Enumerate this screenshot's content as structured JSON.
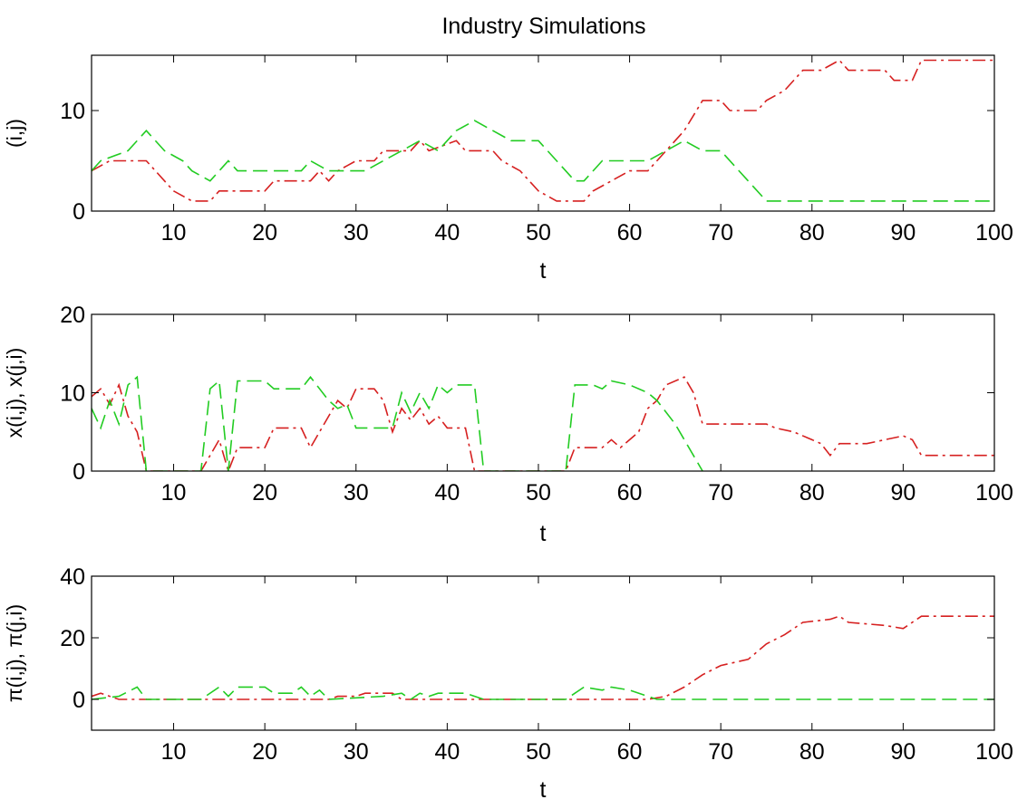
{
  "figure": {
    "title": "Industry Simulations"
  },
  "colors": {
    "red_series": "#d62020",
    "green_series": "#22cc22",
    "axes": "#000000"
  },
  "chart_data": [
    {
      "type": "line",
      "xlabel": "t",
      "ylabel": "(i,j)",
      "xlim": [
        1,
        100
      ],
      "ylim": [
        0,
        15.5
      ],
      "xticks": [
        10,
        20,
        30,
        40,
        50,
        60,
        70,
        80,
        90,
        100
      ],
      "yticks": [
        0,
        10
      ],
      "grid": false,
      "series": [
        {
          "color": "red",
          "style": "dash-dot",
          "points": [
            [
              1,
              4
            ],
            [
              3,
              5
            ],
            [
              7,
              5
            ],
            [
              9,
              3
            ],
            [
              10,
              2
            ],
            [
              12,
              1
            ],
            [
              14,
              1
            ],
            [
              15,
              2
            ],
            [
              20,
              2
            ],
            [
              21,
              3
            ],
            [
              25,
              3
            ],
            [
              26,
              4
            ],
            [
              27,
              3
            ],
            [
              28,
              4
            ],
            [
              30,
              5
            ],
            [
              32,
              5
            ],
            [
              33,
              6
            ],
            [
              36,
              6
            ],
            [
              37,
              7
            ],
            [
              38,
              6
            ],
            [
              41,
              7
            ],
            [
              42,
              6
            ],
            [
              45,
              6
            ],
            [
              46,
              5
            ],
            [
              48,
              4
            ],
            [
              50,
              2
            ],
            [
              52,
              1
            ],
            [
              55,
              1
            ],
            [
              56,
              2
            ],
            [
              58,
              3
            ],
            [
              60,
              4
            ],
            [
              62,
              4
            ],
            [
              64,
              6
            ],
            [
              66,
              8
            ],
            [
              68,
              11
            ],
            [
              70,
              11
            ],
            [
              71,
              10
            ],
            [
              74,
              10
            ],
            [
              75,
              11
            ],
            [
              77,
              12
            ],
            [
              79,
              14
            ],
            [
              81,
              14
            ],
            [
              83,
              15
            ],
            [
              84,
              14
            ],
            [
              88,
              14
            ],
            [
              89,
              13
            ],
            [
              91,
              13
            ],
            [
              92,
              15
            ],
            [
              100,
              15
            ]
          ]
        },
        {
          "color": "green",
          "style": "dashed",
          "points": [
            [
              1,
              4
            ],
            [
              2,
              5
            ],
            [
              5,
              6
            ],
            [
              7,
              8
            ],
            [
              9,
              6
            ],
            [
              11,
              5
            ],
            [
              12,
              4
            ],
            [
              14,
              3
            ],
            [
              16,
              5
            ],
            [
              17,
              4
            ],
            [
              24,
              4
            ],
            [
              25,
              5
            ],
            [
              27,
              4
            ],
            [
              31,
              4
            ],
            [
              33,
              5
            ],
            [
              35,
              6
            ],
            [
              37,
              7
            ],
            [
              39,
              6
            ],
            [
              41,
              8
            ],
            [
              43,
              9
            ],
            [
              45,
              8
            ],
            [
              47,
              7
            ],
            [
              50,
              7
            ],
            [
              52,
              5
            ],
            [
              54,
              3
            ],
            [
              55,
              3
            ],
            [
              57,
              5
            ],
            [
              60,
              5
            ],
            [
              62,
              5
            ],
            [
              64,
              6
            ],
            [
              66,
              7
            ],
            [
              68,
              6
            ],
            [
              70,
              6
            ],
            [
              72,
              4
            ],
            [
              75,
              1
            ],
            [
              100,
              1
            ]
          ]
        }
      ]
    },
    {
      "type": "line",
      "xlabel": "t",
      "ylabel": "x(i,j), x(j,i)",
      "xlim": [
        1,
        100
      ],
      "ylim": [
        0,
        20
      ],
      "xticks": [
        10,
        20,
        30,
        40,
        50,
        60,
        70,
        80,
        90,
        100
      ],
      "yticks": [
        0,
        10,
        20
      ],
      "grid": false,
      "series": [
        {
          "color": "red",
          "style": "dash-dot",
          "points": [
            [
              1,
              9.5
            ],
            [
              2,
              10.5
            ],
            [
              3,
              8.5
            ],
            [
              4,
              11
            ],
            [
              5,
              7
            ],
            [
              6,
              5
            ],
            [
              7,
              0
            ],
            [
              13,
              0
            ],
            [
              14,
              2
            ],
            [
              15,
              4
            ],
            [
              16,
              0
            ],
            [
              17,
              3
            ],
            [
              20,
              3
            ],
            [
              21,
              5.5
            ],
            [
              24,
              5.5
            ],
            [
              25,
              3
            ],
            [
              26,
              5
            ],
            [
              27,
              7
            ],
            [
              28,
              9
            ],
            [
              29,
              8
            ],
            [
              30,
              10.5
            ],
            [
              32,
              10.5
            ],
            [
              33,
              9
            ],
            [
              34,
              5
            ],
            [
              35,
              8
            ],
            [
              36,
              6.5
            ],
            [
              37,
              8
            ],
            [
              38,
              6
            ],
            [
              39,
              7
            ],
            [
              40,
              5.5
            ],
            [
              42,
              5.5
            ],
            [
              43,
              0
            ],
            [
              53,
              0
            ],
            [
              54,
              3
            ],
            [
              57,
              3
            ],
            [
              58,
              4
            ],
            [
              59,
              3
            ],
            [
              61,
              5
            ],
            [
              62,
              8
            ],
            [
              63,
              9
            ],
            [
              64,
              11
            ],
            [
              66,
              12
            ],
            [
              67,
              10
            ],
            [
              68,
              6
            ],
            [
              72,
              6
            ],
            [
              73,
              6
            ],
            [
              75,
              6
            ],
            [
              76,
              5.5
            ],
            [
              78,
              5
            ],
            [
              80,
              4
            ],
            [
              81,
              3.5
            ],
            [
              82,
              2
            ],
            [
              83,
              3.5
            ],
            [
              86,
              3.5
            ],
            [
              88,
              4
            ],
            [
              90,
              4.5
            ],
            [
              91,
              4
            ],
            [
              92,
              2
            ],
            [
              100,
              2
            ]
          ]
        },
        {
          "color": "green",
          "style": "dashed",
          "points": [
            [
              1,
              8
            ],
            [
              2,
              5.5
            ],
            [
              3,
              9
            ],
            [
              4,
              6
            ],
            [
              5,
              11
            ],
            [
              6,
              12
            ],
            [
              7,
              0
            ],
            [
              13,
              0
            ],
            [
              14,
              10.5
            ],
            [
              15,
              11.5
            ],
            [
              16,
              0
            ],
            [
              17,
              11.5
            ],
            [
              20,
              11.5
            ],
            [
              21,
              10.5
            ],
            [
              24,
              10.5
            ],
            [
              25,
              12
            ],
            [
              27,
              9
            ],
            [
              28,
              8
            ],
            [
              29,
              8.5
            ],
            [
              30,
              5.5
            ],
            [
              34,
              5.5
            ],
            [
              35,
              10
            ],
            [
              36,
              7.5
            ],
            [
              37,
              10
            ],
            [
              38,
              8
            ],
            [
              39,
              11
            ],
            [
              40,
              10
            ],
            [
              41,
              11
            ],
            [
              43,
              11
            ],
            [
              44,
              0
            ],
            [
              53,
              0
            ],
            [
              54,
              11
            ],
            [
              56,
              11
            ],
            [
              57,
              10.5
            ],
            [
              58,
              11.5
            ],
            [
              60,
              11
            ],
            [
              62,
              10
            ],
            [
              63,
              9
            ],
            [
              65,
              6
            ],
            [
              67,
              2
            ],
            [
              68,
              0
            ]
          ]
        }
      ]
    },
    {
      "type": "line",
      "xlabel": "t",
      "ylabel": "π(i,j), π(j,i)",
      "xlim": [
        1,
        100
      ],
      "ylim": [
        -10,
        40
      ],
      "xticks": [
        10,
        20,
        30,
        40,
        50,
        60,
        70,
        80,
        90,
        100
      ],
      "yticks": [
        0,
        20,
        40
      ],
      "grid": false,
      "series": [
        {
          "color": "red",
          "style": "dash-dot",
          "points": [
            [
              1,
              1
            ],
            [
              2,
              2
            ],
            [
              4,
              0
            ],
            [
              27,
              0
            ],
            [
              28,
              1
            ],
            [
              30,
              1
            ],
            [
              31,
              2
            ],
            [
              34,
              2
            ],
            [
              35,
              0
            ],
            [
              62,
              0
            ],
            [
              64,
              1
            ],
            [
              66,
              4
            ],
            [
              68,
              8
            ],
            [
              70,
              11
            ],
            [
              73,
              13
            ],
            [
              75,
              18
            ],
            [
              77,
              21
            ],
            [
              79,
              25
            ],
            [
              82,
              26
            ],
            [
              83,
              27
            ],
            [
              84,
              25
            ],
            [
              88,
              24
            ],
            [
              90,
              23
            ],
            [
              92,
              27
            ],
            [
              100,
              27
            ]
          ]
        },
        {
          "color": "green",
          "style": "dashed",
          "points": [
            [
              1,
              0
            ],
            [
              4,
              1
            ],
            [
              6,
              4
            ],
            [
              7,
              0
            ],
            [
              13,
              0
            ],
            [
              15,
              4
            ],
            [
              16,
              1
            ],
            [
              17,
              4
            ],
            [
              20,
              4
            ],
            [
              21,
              2
            ],
            [
              23,
              2
            ],
            [
              24,
              4
            ],
            [
              25,
              1
            ],
            [
              26,
              3
            ],
            [
              27,
              0
            ],
            [
              33,
              1
            ],
            [
              35,
              2
            ],
            [
              36,
              0
            ],
            [
              37,
              2
            ],
            [
              38,
              1
            ],
            [
              39,
              2
            ],
            [
              42,
              2
            ],
            [
              44,
              0
            ],
            [
              53,
              0
            ],
            [
              55,
              4
            ],
            [
              57,
              3
            ],
            [
              58,
              4
            ],
            [
              60,
              3
            ],
            [
              62,
              1
            ],
            [
              63,
              0
            ],
            [
              100,
              0
            ]
          ]
        }
      ]
    }
  ]
}
